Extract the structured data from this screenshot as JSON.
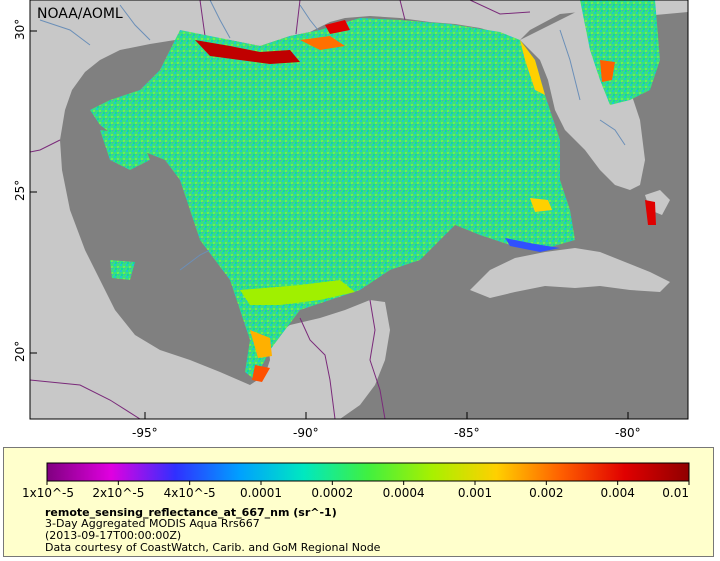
{
  "credit": "NOAA/AOML",
  "map": {
    "colors": {
      "ocean_nodata": "#808080",
      "land": "#c8c8c8",
      "border": "#7a2a7a",
      "river": "#6b8fb8",
      "frame": "#000000"
    },
    "lon_ticks": [
      "-95°",
      "-90°",
      "-85°",
      "-80°"
    ],
    "lat_ticks": [
      "30°",
      "25°",
      "20°"
    ]
  },
  "colorbar": {
    "tick_labels": [
      "1x10^-5",
      "2x10^-5",
      "4x10^-5",
      "0.0001",
      "0.0002",
      "0.0004",
      "0.001",
      "0.002",
      "0.004",
      "0.01"
    ],
    "colors": [
      "#800080",
      "#e000e0",
      "#3030ff",
      "#00a0ff",
      "#00e8c0",
      "#40f040",
      "#a8f000",
      "#ffd000",
      "#ff6000",
      "#e00000",
      "#900000"
    ]
  },
  "legend": {
    "title": "remote_sensing_reflectance_at_667_nm (sr^-1)",
    "line1": "3-Day Aggregated MODIS Aqua Rrs667",
    "line2": "(2013-09-17T00:00:00Z)",
    "line3": "Data courtesy of CoastWatch, Carib. and GoM Regional Node"
  }
}
